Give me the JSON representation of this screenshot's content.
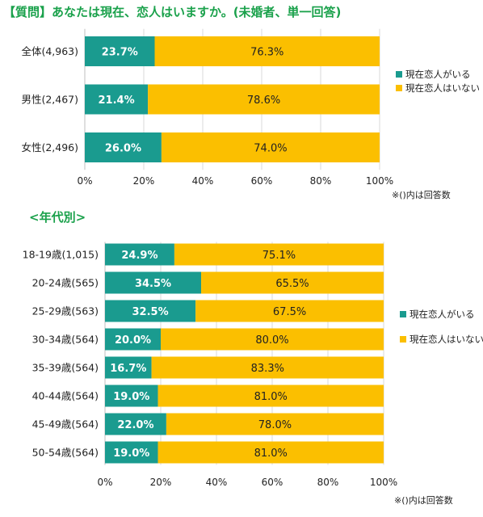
{
  "title": "【質問】あなたは現在、恋人はいますか。(未婚者、単一回答)",
  "section_title": "<年代別>",
  "chart_data": [
    {
      "type": "bar",
      "orientation": "horizontal",
      "stacked": true,
      "categories": [
        "全体(4,963)",
        "男性(2,467)",
        "女性(2,496)"
      ],
      "series": [
        {
          "name": "現在恋人がいる",
          "values": [
            23.7,
            21.4,
            26.0
          ],
          "labels": [
            "23.7%",
            "21.4%",
            "26.0%"
          ],
          "color": "#1a9b8f"
        },
        {
          "name": "現在恋人はいない",
          "values": [
            76.3,
            78.6,
            74.0
          ],
          "labels": [
            "76.3%",
            "78.6%",
            "74.0%"
          ],
          "color": "#fbbf00"
        }
      ],
      "xlim": [
        0,
        100
      ],
      "xticks": [
        0,
        20,
        40,
        60,
        80,
        100
      ],
      "xtick_labels": [
        "0%",
        "20%",
        "40%",
        "60%",
        "80%",
        "100%"
      ],
      "grid": true,
      "legend_position": "right",
      "note": "※()内は回答数"
    },
    {
      "type": "bar",
      "orientation": "horizontal",
      "stacked": true,
      "categories": [
        "18-19歳(1,015)",
        "20-24歳(565)",
        "25-29歳(563)",
        "30-34歳(564)",
        "35-39歳(564)",
        "40-44歳(564)",
        "45-49歳(564)",
        "50-54歳(564)"
      ],
      "series": [
        {
          "name": "現在恋人がいる",
          "values": [
            24.9,
            34.5,
            32.5,
            20.0,
            16.7,
            19.0,
            22.0,
            19.0
          ],
          "labels": [
            "24.9%",
            "34.5%",
            "32.5%",
            "20.0%",
            "16.7%",
            "19.0%",
            "22.0%",
            "19.0%"
          ],
          "color": "#1a9b8f"
        },
        {
          "name": "現在恋人はいない",
          "values": [
            75.1,
            65.5,
            67.5,
            80.0,
            83.3,
            81.0,
            78.0,
            81.0
          ],
          "labels": [
            "75.1%",
            "65.5%",
            "67.5%",
            "80.0%",
            "83.3%",
            "81.0%",
            "78.0%",
            "81.0%"
          ],
          "color": "#fbbf00"
        }
      ],
      "xlim": [
        0,
        100
      ],
      "xticks": [
        0,
        20,
        40,
        60,
        80,
        100
      ],
      "xtick_labels": [
        "0%",
        "20%",
        "40%",
        "60%",
        "80%",
        "100%"
      ],
      "grid": true,
      "legend_position": "right",
      "note": "※()内は回答数"
    }
  ]
}
